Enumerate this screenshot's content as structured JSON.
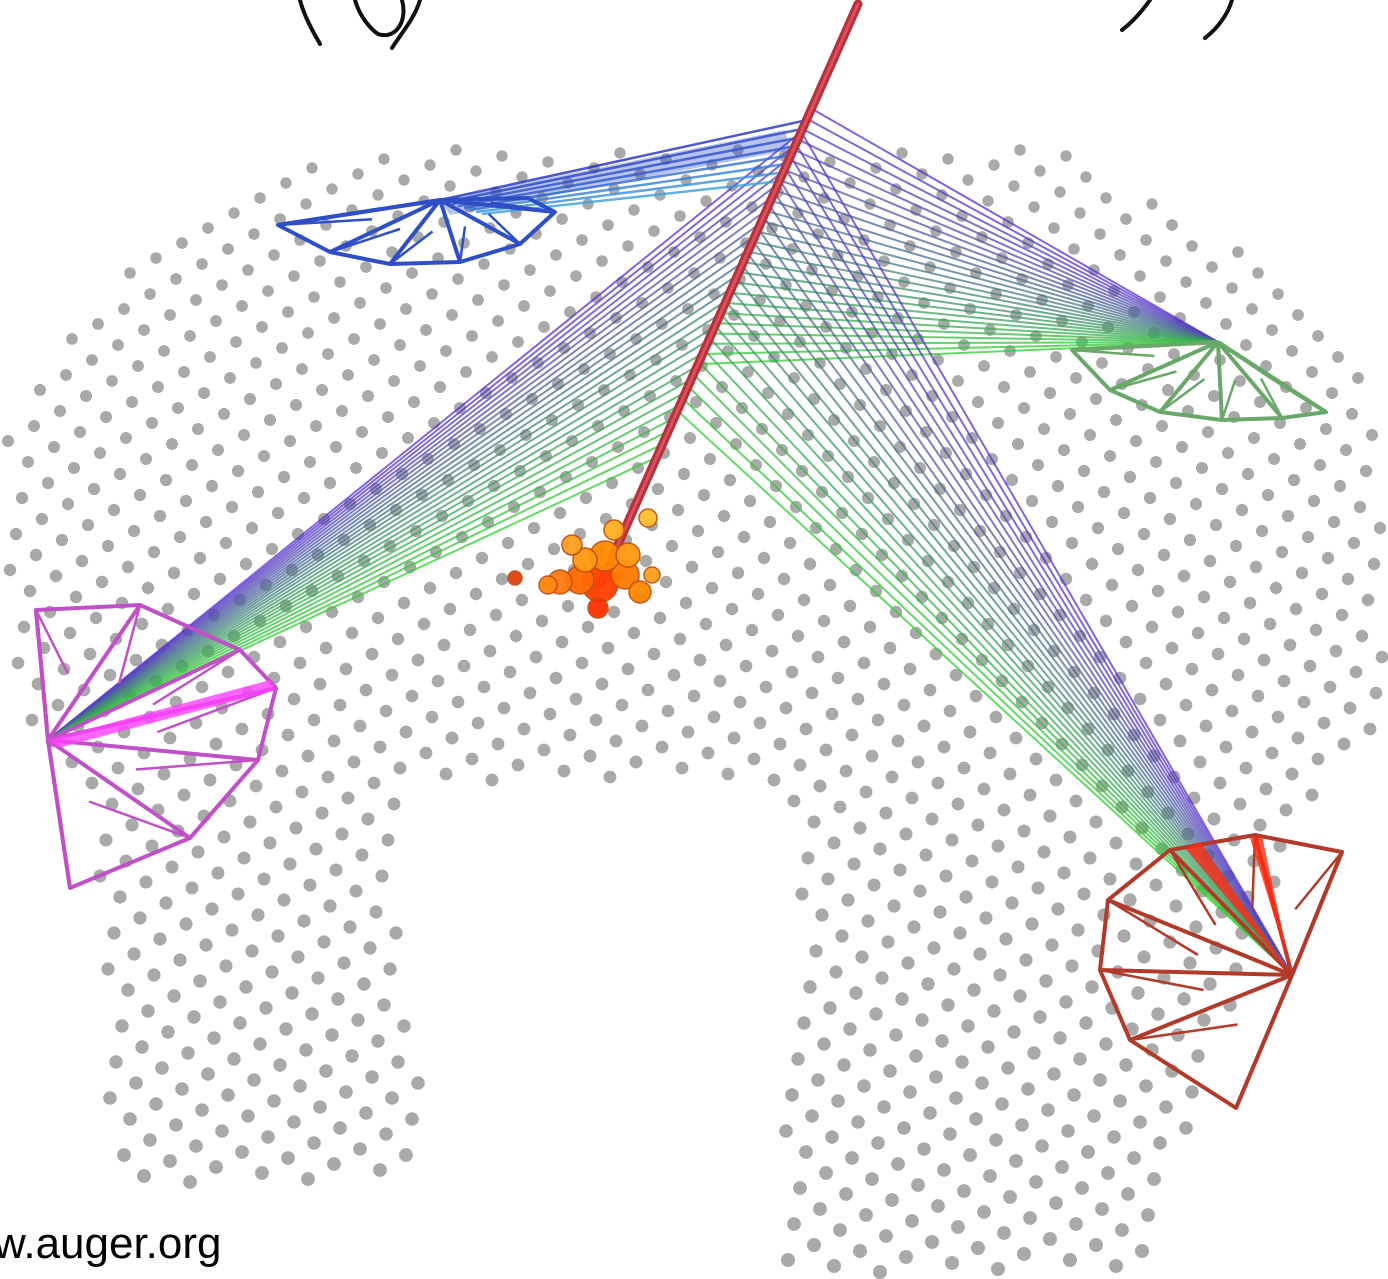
{
  "credit_text": "w.auger.org",
  "colors": {
    "background": "#ffffff",
    "tank": "#9a9a9a",
    "shower_axis": "#c23a3a",
    "footprint_core": "#ff5a00",
    "footprint_outer": "#ffb400",
    "eye_top_left": "#2f4fc8",
    "eye_top_right": "#6aa86a",
    "eye_left": "#c050c8",
    "eye_bottom_right": "#b23a2a",
    "beam_near": "#2fd02f",
    "beam_far": "#5a2fd0"
  },
  "icons": {
    "detector_station": "dot",
    "fluorescence_eye": "fan"
  }
}
